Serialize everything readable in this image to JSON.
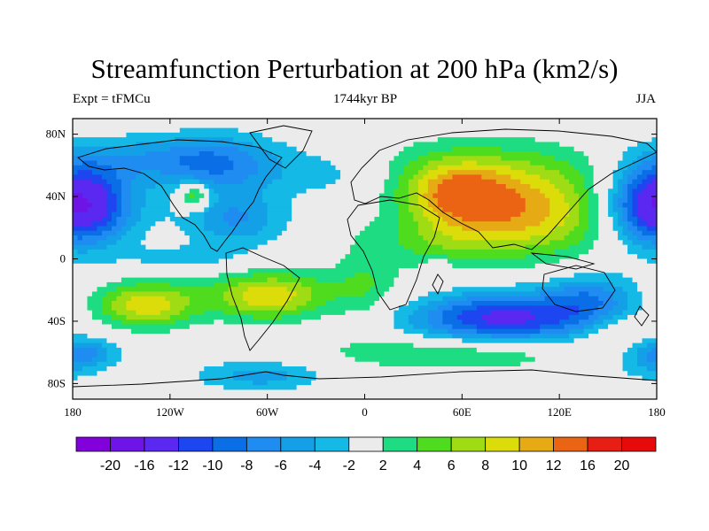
{
  "title": "Streamfunction Perturbation at 200 hPa (km2/s)",
  "subtitle_left": "Expt = tFMCu",
  "subtitle_center": "1744kyr BP",
  "subtitle_right": "JJA",
  "chart_data": {
    "type": "heatmap",
    "projection": "cylindrical equidistant",
    "variable": "Streamfunction perturbation",
    "level": "200 hPa",
    "units": "km2/s",
    "season": "JJA",
    "xlim": [
      -180,
      180
    ],
    "ylim": [
      -90,
      90
    ],
    "x_ticks": [
      {
        "value": -180,
        "label": "180"
      },
      {
        "value": -120,
        "label": "120W"
      },
      {
        "value": -60,
        "label": "60W"
      },
      {
        "value": 0,
        "label": "0"
      },
      {
        "value": 60,
        "label": "60E"
      },
      {
        "value": 120,
        "label": "120E"
      },
      {
        "value": 180,
        "label": "180"
      }
    ],
    "y_ticks": [
      {
        "value": 80,
        "label": "80N"
      },
      {
        "value": 40,
        "label": "40N"
      },
      {
        "value": 0,
        "label": "0"
      },
      {
        "value": -40,
        "label": "40S"
      },
      {
        "value": -80,
        "label": "80S"
      }
    ],
    "contour_levels": [
      -20,
      -16,
      -12,
      -10,
      -8,
      -6,
      -4,
      -2,
      2,
      4,
      6,
      8,
      10,
      12,
      16,
      20
    ],
    "colorbar_labels": [
      "-20",
      "-16",
      "-12",
      "-10",
      "-8",
      "-6",
      "-4",
      "-2",
      "2",
      "4",
      "6",
      "8",
      "10",
      "12",
      "16",
      "20"
    ],
    "colors": [
      "#8200dc",
      "#6e14e6",
      "#5a28f0",
      "#1e46f0",
      "#0a6ee6",
      "#1e8cf0",
      "#14a0e6",
      "#14b9e6",
      "#ebebeb",
      "#1edc82",
      "#50dc1e",
      "#a0dc14",
      "#dcdc0a",
      "#e6aa14",
      "#eb6414",
      "#e61e14",
      "#e60a0a"
    ],
    "features": [
      {
        "lon": 95,
        "lat": 30,
        "amp": 11,
        "sx": 40,
        "sy": 20
      },
      {
        "lon": 55,
        "lat": 42,
        "amp": 8,
        "sx": 22,
        "sy": 14
      },
      {
        "lon": 70,
        "lat": 60,
        "amp": 3,
        "sx": 60,
        "sy": 14
      },
      {
        "lon": 40,
        "lat": 10,
        "amp": 3,
        "sx": 25,
        "sy": 10
      },
      {
        "lon": 85,
        "lat": -38,
        "amp": -13,
        "sx": 40,
        "sy": 12
      },
      {
        "lon": 140,
        "lat": -25,
        "amp": -6,
        "sx": 20,
        "sy": 12
      },
      {
        "lon": -170,
        "lat": 35,
        "amp": -10,
        "sx": 22,
        "sy": 18
      },
      {
        "lon": 175,
        "lat": 35,
        "amp": -9,
        "sx": 20,
        "sy": 18
      },
      {
        "lon": -90,
        "lat": 60,
        "amp": -7,
        "sx": 28,
        "sy": 14
      },
      {
        "lon": -80,
        "lat": 25,
        "amp": -6,
        "sx": 22,
        "sy": 12
      },
      {
        "lon": -140,
        "lat": 65,
        "amp": -4,
        "sx": 40,
        "sy": 10
      },
      {
        "lon": -20,
        "lat": 55,
        "amp": -3,
        "sx": 28,
        "sy": 12
      },
      {
        "lon": -105,
        "lat": 40,
        "amp": 8,
        "sx": 7,
        "sy": 6
      },
      {
        "lon": -135,
        "lat": -30,
        "amp": 9,
        "sx": 22,
        "sy": 10
      },
      {
        "lon": -60,
        "lat": -25,
        "amp": 7,
        "sx": 22,
        "sy": 10
      },
      {
        "lon": -45,
        "lat": -20,
        "amp": 3,
        "sx": 55,
        "sy": 12
      },
      {
        "lon": -110,
        "lat": 0,
        "amp": -3,
        "sx": 30,
        "sy": 6
      },
      {
        "lon": 60,
        "lat": -60,
        "amp": 5,
        "sx": 55,
        "sy": 8
      },
      {
        "lon": -170,
        "lat": -60,
        "amp": -5,
        "sx": 15,
        "sy": 7
      },
      {
        "lon": -65,
        "lat": -75,
        "amp": -5,
        "sx": 28,
        "sy": 7
      },
      {
        "lon": 175,
        "lat": -65,
        "amp": -4,
        "sx": 15,
        "sy": 10
      },
      {
        "lon": 155,
        "lat": -45,
        "amp": 3,
        "sx": 15,
        "sy": 8
      },
      {
        "lon": 0,
        "lat": -15,
        "amp": 2.5,
        "sx": 12,
        "sy": 22
      },
      {
        "lon": 45,
        "lat": -5,
        "amp": -3,
        "sx": 5,
        "sy": 4
      }
    ]
  }
}
